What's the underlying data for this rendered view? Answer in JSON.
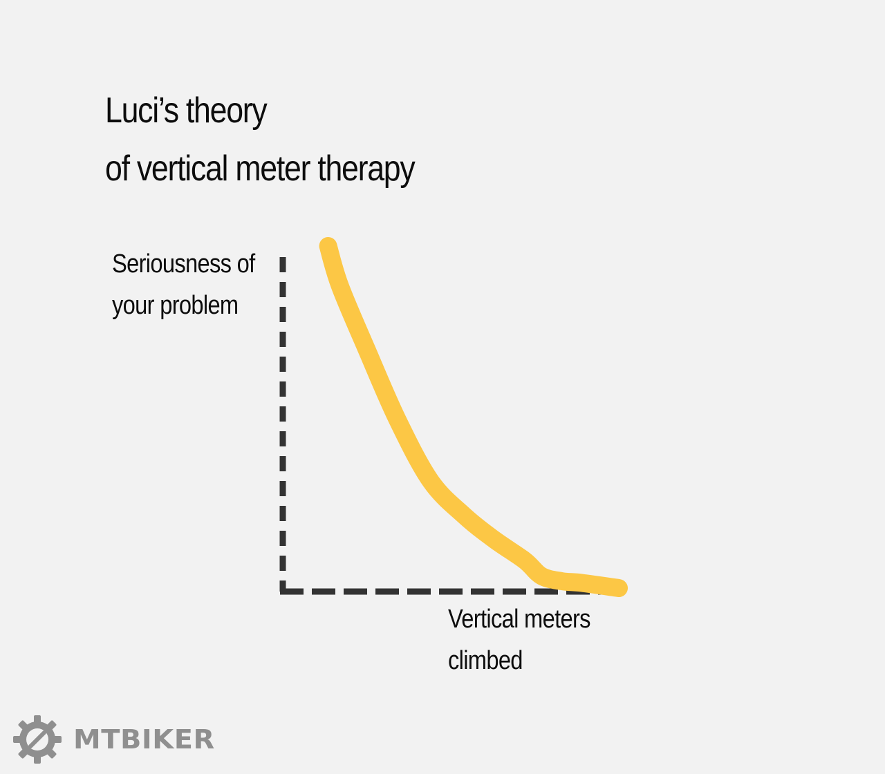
{
  "chart_data": {
    "type": "line",
    "title": [
      "Luci’s theory",
      "of vertical meter therapy"
    ],
    "ylabel": [
      "Seriousness of",
      "your problem"
    ],
    "xlabel": [
      "Vertical meters",
      "climbed"
    ],
    "x_ticks": [],
    "y_ticks": [],
    "grid": false,
    "legend": "none",
    "xlim": [
      0,
      100
    ],
    "ylim": [
      0,
      100
    ],
    "series": [
      {
        "color": "#fcc745",
        "x": [
          13.5,
          17,
          25,
          34,
          44,
          54,
          63,
          72,
          77,
          83,
          89,
          100
        ],
        "y": [
          100,
          88.5,
          70,
          50,
          32,
          22,
          15,
          9,
          4.5,
          3,
          2.5,
          1
        ]
      }
    ],
    "axis_color": "#333333"
  },
  "brand": {
    "name": "MTBIKER",
    "icon": "gear-logo-icon",
    "color": "#8f8f8f"
  }
}
